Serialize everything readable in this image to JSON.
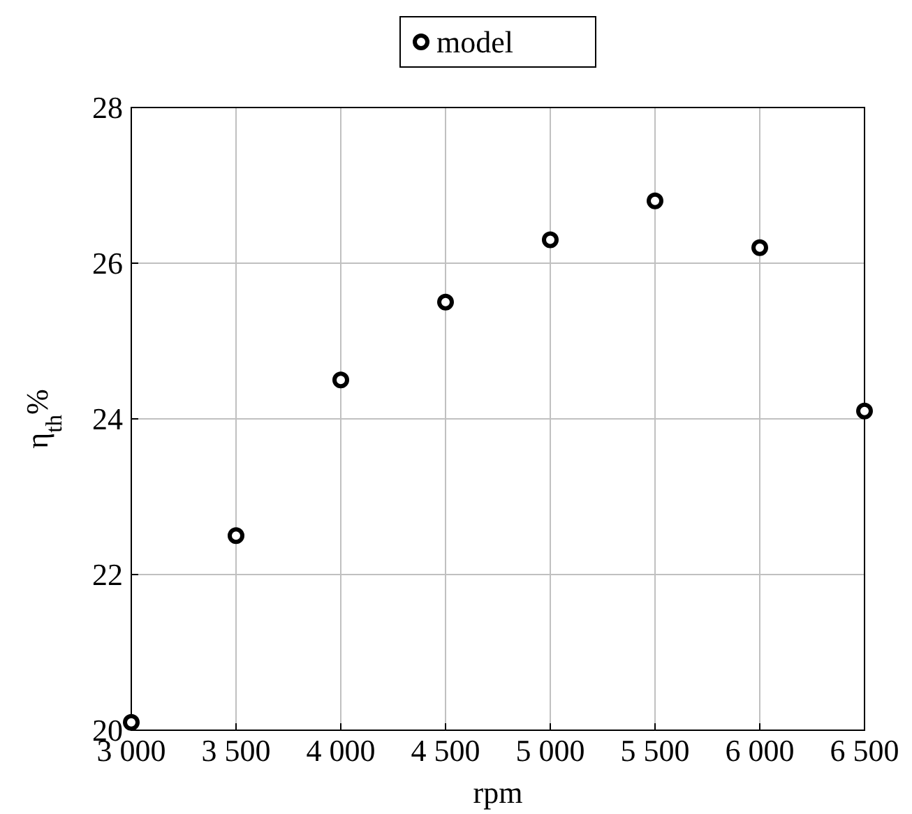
{
  "chart_data": {
    "type": "scatter",
    "xlabel": "rpm",
    "ylabel": "η$_{th}$%",
    "x": [
      3000,
      3500,
      4000,
      4500,
      5000,
      5500,
      6000,
      6500
    ],
    "series": [
      {
        "name": "model",
        "color": "#000000",
        "values": [
          20.1,
          22.5,
          24.5,
          25.5,
          26.3,
          26.8,
          26.2,
          24.1
        ]
      }
    ],
    "xlim": [
      3000,
      6500
    ],
    "ylim": [
      20,
      28
    ],
    "xticks": [
      {
        "value": 3000,
        "label": "3 000"
      },
      {
        "value": 3500,
        "label": "3 500"
      },
      {
        "value": 4000,
        "label": "4 000"
      },
      {
        "value": 4500,
        "label": "4 500"
      },
      {
        "value": 5000,
        "label": "5 000"
      },
      {
        "value": 5500,
        "label": "5 500"
      },
      {
        "value": 6000,
        "label": "6 000"
      },
      {
        "value": 6500,
        "label": "6 500"
      }
    ],
    "yticks": [
      20,
      22,
      24,
      26,
      28
    ],
    "grid": true,
    "legend": "top",
    "marker": "circle"
  }
}
